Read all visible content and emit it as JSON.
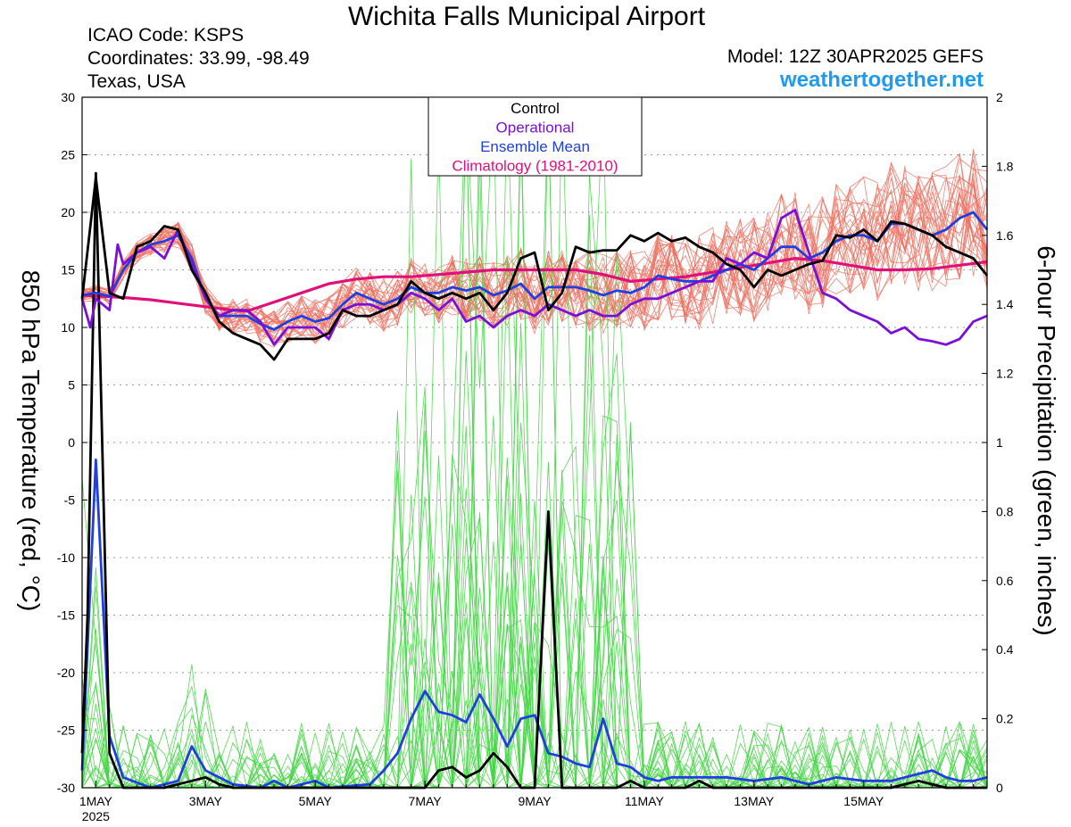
{
  "header": {
    "title": "Wichita Falls Municipal Airport",
    "icao": "ICAO Code: KSPS",
    "coordinates": "Coordinates: 33.99, -98.49",
    "region": "Texas, USA",
    "model": "Model: 12Z 30APR2025 GEFS",
    "website": "weathertogether.net"
  },
  "chart_data": {
    "type": "line",
    "ylabel_left": "850 hPa Temperature (red, °C)",
    "ylabel_right": "6-hour Precipitation (green, inches)",
    "yleft_range": [
      -30,
      30
    ],
    "yleft_ticks": [
      "30",
      "25",
      "20",
      "15",
      "10",
      "5",
      "0",
      "-5",
      "-10",
      "-15",
      "-20",
      "-25",
      "-30"
    ],
    "yright_range": [
      0,
      2
    ],
    "yright_ticks": [
      "2",
      "1.8",
      "1.6",
      "1.4",
      "1.2",
      "1",
      "0.8",
      "0.6",
      "0.4",
      "0.2",
      "0"
    ],
    "x_unit": "day of May 2025",
    "x_range": [
      0.75,
      17.25
    ],
    "x_ticks": [
      {
        "day": 1,
        "label": "1MAY",
        "sub": "2025"
      },
      {
        "day": 3,
        "label": "3MAY"
      },
      {
        "day": 5,
        "label": "5MAY"
      },
      {
        "day": 7,
        "label": "7MAY"
      },
      {
        "day": 9,
        "label": "9MAY"
      },
      {
        "day": 11,
        "label": "11MAY"
      },
      {
        "day": 13,
        "label": "13MAY"
      },
      {
        "day": 15,
        "label": "15MAY"
      }
    ],
    "grid": true,
    "legend_position": "top-center",
    "legend": [
      {
        "label": "Control",
        "color": "#000000"
      },
      {
        "label": "Operational",
        "color": "#7a10d6"
      },
      {
        "label": "Ensemble Mean",
        "color": "#1f3fe0"
      },
      {
        "label": "Climatology (1981-2010)",
        "color": "#e0107a"
      }
    ],
    "colors": {
      "member_temp": "#f07060",
      "member_precip": "#44d644",
      "control": "#000000",
      "operational": "#7a10d6",
      "mean": "#1f3fe0",
      "climatology": "#e0107a"
    },
    "temperature": {
      "control": [
        [
          0.75,
          12.5
        ],
        [
          1,
          23
        ],
        [
          1.25,
          13
        ],
        [
          1.5,
          12.5
        ],
        [
          1.75,
          17
        ],
        [
          2,
          17.5
        ],
        [
          2.25,
          18.8
        ],
        [
          2.5,
          18.5
        ],
        [
          2.75,
          15
        ],
        [
          3,
          13
        ],
        [
          3.25,
          10.5
        ],
        [
          3.5,
          9.5
        ],
        [
          3.75,
          9
        ],
        [
          4,
          8.5
        ],
        [
          4.25,
          7.2
        ],
        [
          4.5,
          9
        ],
        [
          4.75,
          9
        ],
        [
          5,
          9
        ],
        [
          5.25,
          9.5
        ],
        [
          5.5,
          11.5
        ],
        [
          5.75,
          11
        ],
        [
          6,
          11
        ],
        [
          6.25,
          11.5
        ],
        [
          6.5,
          12
        ],
        [
          6.75,
          14
        ],
        [
          7,
          13
        ],
        [
          7.25,
          12.5
        ],
        [
          7.5,
          13
        ],
        [
          7.75,
          12.5
        ],
        [
          8,
          13
        ],
        [
          8.25,
          11.5
        ],
        [
          8.5,
          13
        ],
        [
          8.75,
          16
        ],
        [
          9,
          16.5
        ],
        [
          9.25,
          11.5
        ],
        [
          9.5,
          13
        ],
        [
          9.75,
          17
        ],
        [
          10,
          16.5
        ],
        [
          10.25,
          16.7
        ],
        [
          10.5,
          16.7
        ],
        [
          10.75,
          18
        ],
        [
          11,
          17.5
        ],
        [
          11.25,
          18.2
        ],
        [
          11.5,
          17.5
        ],
        [
          11.75,
          17.8
        ],
        [
          12,
          17
        ],
        [
          12.25,
          16.5
        ],
        [
          12.5,
          15.5
        ],
        [
          12.75,
          15
        ],
        [
          13,
          13.5
        ],
        [
          13.25,
          15
        ],
        [
          13.5,
          14.5
        ],
        [
          13.75,
          15
        ],
        [
          14,
          15.5
        ],
        [
          14.25,
          15.8
        ],
        [
          14.5,
          18
        ],
        [
          14.75,
          17.8
        ],
        [
          15,
          18.5
        ],
        [
          15.25,
          17.5
        ],
        [
          15.5,
          19.2
        ],
        [
          15.75,
          19
        ],
        [
          16,
          18.5
        ],
        [
          16.25,
          18
        ],
        [
          16.5,
          17
        ],
        [
          16.75,
          16.5
        ],
        [
          17,
          16
        ],
        [
          17.25,
          14.5
        ]
      ],
      "operational": [
        [
          0.75,
          12.5
        ],
        [
          0.9,
          10
        ],
        [
          1,
          12.5
        ],
        [
          1.25,
          11.5
        ],
        [
          1.4,
          17.2
        ],
        [
          1.5,
          15.5
        ],
        [
          1.75,
          16.5
        ],
        [
          2,
          17
        ],
        [
          2.25,
          16
        ],
        [
          2.5,
          18.5
        ],
        [
          2.75,
          15.5
        ],
        [
          3,
          12.5
        ],
        [
          3.25,
          11
        ],
        [
          3.5,
          11.5
        ],
        [
          3.75,
          11.5
        ],
        [
          4,
          10.5
        ],
        [
          4.25,
          8.5
        ],
        [
          4.5,
          10
        ],
        [
          4.75,
          10
        ],
        [
          5,
          10
        ],
        [
          5.25,
          9
        ],
        [
          5.5,
          11.5
        ],
        [
          5.75,
          12
        ],
        [
          6,
          12
        ],
        [
          6.25,
          11.5
        ],
        [
          6.5,
          12
        ],
        [
          6.75,
          13
        ],
        [
          7,
          12.5
        ],
        [
          7.25,
          11.5
        ],
        [
          7.5,
          12.5
        ],
        [
          7.75,
          10.5
        ],
        [
          8,
          11
        ],
        [
          8.25,
          10
        ],
        [
          8.5,
          11
        ],
        [
          8.75,
          11.5
        ],
        [
          9,
          11
        ],
        [
          9.25,
          12
        ],
        [
          9.5,
          11.5
        ],
        [
          9.75,
          11
        ],
        [
          10,
          11.5
        ],
        [
          10.25,
          11
        ],
        [
          10.5,
          11
        ],
        [
          10.75,
          12
        ],
        [
          11,
          12.5
        ],
        [
          11.25,
          12.5
        ],
        [
          11.5,
          13
        ],
        [
          11.75,
          13.5
        ],
        [
          12,
          14
        ],
        [
          12.25,
          14
        ],
        [
          12.5,
          16
        ],
        [
          12.75,
          15.5
        ],
        [
          13,
          16.5
        ],
        [
          13.25,
          16
        ],
        [
          13.5,
          19.5
        ],
        [
          13.75,
          20.2
        ],
        [
          14,
          16.5
        ],
        [
          14.25,
          13
        ],
        [
          14.5,
          12.5
        ],
        [
          14.75,
          11.5
        ],
        [
          15,
          11
        ],
        [
          15.25,
          10.5
        ],
        [
          15.5,
          9.5
        ],
        [
          15.75,
          10
        ],
        [
          16,
          9
        ],
        [
          16.25,
          8.8
        ],
        [
          16.5,
          8.5
        ],
        [
          16.75,
          9
        ],
        [
          17,
          10.5
        ],
        [
          17.25,
          11
        ]
      ],
      "mean": [
        [
          0.75,
          12.8
        ],
        [
          1,
          13
        ],
        [
          1.25,
          12.7
        ],
        [
          1.5,
          15
        ],
        [
          1.75,
          16.5
        ],
        [
          2,
          17.2
        ],
        [
          2.25,
          17.5
        ],
        [
          2.5,
          18
        ],
        [
          2.75,
          16
        ],
        [
          3,
          12.5
        ],
        [
          3.25,
          11
        ],
        [
          3.5,
          11
        ],
        [
          3.75,
          11
        ],
        [
          4,
          10.3
        ],
        [
          4.25,
          9.8
        ],
        [
          4.5,
          10.5
        ],
        [
          4.75,
          11
        ],
        [
          5,
          10.5
        ],
        [
          5.25,
          10.8
        ],
        [
          5.5,
          12
        ],
        [
          5.75,
          13
        ],
        [
          6,
          12.5
        ],
        [
          6.25,
          12
        ],
        [
          6.5,
          12.5
        ],
        [
          6.75,
          13.5
        ],
        [
          7,
          13
        ],
        [
          7.25,
          13
        ],
        [
          7.5,
          13.5
        ],
        [
          7.75,
          13.2
        ],
        [
          8,
          13.5
        ],
        [
          8.25,
          12.8
        ],
        [
          8.5,
          13.2
        ],
        [
          8.75,
          13.8
        ],
        [
          9,
          12.5
        ],
        [
          9.25,
          13.5
        ],
        [
          9.5,
          13.5
        ],
        [
          9.75,
          13.5
        ],
        [
          10,
          13.2
        ],
        [
          10.25,
          12.8
        ],
        [
          10.5,
          13.2
        ],
        [
          10.75,
          13
        ],
        [
          11,
          13.5
        ],
        [
          11.25,
          14.5
        ],
        [
          11.5,
          14.2
        ],
        [
          11.75,
          14
        ],
        [
          12,
          14
        ],
        [
          12.25,
          14.5
        ],
        [
          12.5,
          15
        ],
        [
          12.75,
          15.5
        ],
        [
          13,
          15
        ],
        [
          13.25,
          16
        ],
        [
          13.5,
          17
        ],
        [
          13.75,
          17
        ],
        [
          14,
          16
        ],
        [
          14.25,
          16.5
        ],
        [
          14.5,
          17.5
        ],
        [
          14.75,
          18
        ],
        [
          15,
          18
        ],
        [
          15.25,
          17.5
        ],
        [
          15.5,
          19
        ],
        [
          15.75,
          19
        ],
        [
          16,
          18.5
        ],
        [
          16.25,
          18
        ],
        [
          16.5,
          18.5
        ],
        [
          16.75,
          19.5
        ],
        [
          17,
          20
        ],
        [
          17.25,
          18.5
        ]
      ],
      "climatology": [
        [
          0.75,
          12.8
        ],
        [
          1.5,
          12.6
        ],
        [
          2,
          12.4
        ],
        [
          2.5,
          12.1
        ],
        [
          3,
          11.8
        ],
        [
          3.5,
          11.5
        ],
        [
          3.75,
          11.4
        ],
        [
          4.25,
          12.2
        ],
        [
          4.75,
          13
        ],
        [
          5.25,
          13.8
        ],
        [
          5.75,
          14.2
        ],
        [
          6.25,
          14.4
        ],
        [
          6.75,
          14.4
        ],
        [
          7.25,
          14.6
        ],
        [
          7.75,
          14.8
        ],
        [
          8.25,
          15
        ],
        [
          8.75,
          15
        ],
        [
          9.25,
          15
        ],
        [
          9.75,
          15
        ],
        [
          10.25,
          14.6
        ],
        [
          10.75,
          14
        ],
        [
          11.25,
          14.2
        ],
        [
          11.75,
          14.4
        ],
        [
          12.25,
          14.8
        ],
        [
          12.75,
          15.2
        ],
        [
          13.25,
          15.6
        ],
        [
          13.75,
          16
        ],
        [
          14.25,
          15.8
        ],
        [
          14.75,
          15.4
        ],
        [
          15.25,
          15
        ],
        [
          15.75,
          15
        ],
        [
          16.25,
          15.1
        ],
        [
          16.75,
          15.4
        ],
        [
          17.25,
          15.7
        ]
      ]
    },
    "precipitation": {
      "control": [
        [
          0.75,
          0.1
        ],
        [
          0.85,
          0.5
        ],
        [
          1,
          1.78
        ],
        [
          1.25,
          0.1
        ],
        [
          1.5,
          0
        ],
        [
          2,
          0
        ],
        [
          2.25,
          0
        ],
        [
          2.5,
          0.01
        ],
        [
          2.75,
          0.02
        ],
        [
          3,
          0.03
        ],
        [
          3.25,
          0.01
        ],
        [
          3.5,
          0
        ],
        [
          6.75,
          0
        ],
        [
          7,
          0
        ],
        [
          7.25,
          0.05
        ],
        [
          7.5,
          0.06
        ],
        [
          7.75,
          0.03
        ],
        [
          8,
          0.05
        ],
        [
          8.25,
          0.1
        ],
        [
          8.5,
          0.06
        ],
        [
          8.75,
          0
        ],
        [
          9,
          0
        ],
        [
          9.25,
          0.8
        ],
        [
          9.5,
          0
        ],
        [
          10.5,
          0
        ],
        [
          10.75,
          0.02
        ],
        [
          11,
          0
        ],
        [
          11.5,
          0
        ],
        [
          11.75,
          0
        ],
        [
          12,
          0.02
        ],
        [
          12.25,
          0
        ],
        [
          15.5,
          0
        ],
        [
          16,
          0.02
        ],
        [
          16.25,
          0.01
        ],
        [
          16.5,
          0
        ],
        [
          17.25,
          0
        ]
      ],
      "mean": [
        [
          0.75,
          0.05
        ],
        [
          1,
          0.95
        ],
        [
          1.25,
          0.15
        ],
        [
          1.5,
          0.03
        ],
        [
          2,
          0
        ],
        [
          2.25,
          0.01
        ],
        [
          2.5,
          0.02
        ],
        [
          2.75,
          0.12
        ],
        [
          3,
          0.05
        ],
        [
          3.25,
          0.03
        ],
        [
          3.5,
          0.01
        ],
        [
          4,
          0
        ],
        [
          4.25,
          0.02
        ],
        [
          4.5,
          0
        ],
        [
          5,
          0.02
        ],
        [
          5.25,
          0
        ],
        [
          6,
          0.01
        ],
        [
          6.25,
          0.05
        ],
        [
          6.5,
          0.1
        ],
        [
          6.75,
          0.2
        ],
        [
          7,
          0.28
        ],
        [
          7.25,
          0.22
        ],
        [
          7.5,
          0.21
        ],
        [
          7.75,
          0.19
        ],
        [
          8,
          0.27
        ],
        [
          8.25,
          0.2
        ],
        [
          8.5,
          0.12
        ],
        [
          8.75,
          0.2
        ],
        [
          9,
          0.21
        ],
        [
          9.25,
          0.1
        ],
        [
          9.5,
          0.09
        ],
        [
          9.75,
          0.07
        ],
        [
          10,
          0.06
        ],
        [
          10.25,
          0.2
        ],
        [
          10.5,
          0.07
        ],
        [
          10.75,
          0.06
        ],
        [
          11,
          0.03
        ],
        [
          11.25,
          0.02
        ],
        [
          11.5,
          0.03
        ],
        [
          11.75,
          0.03
        ],
        [
          12,
          0.03
        ],
        [
          12.5,
          0.03
        ],
        [
          13,
          0.02
        ],
        [
          13.5,
          0.03
        ],
        [
          14,
          0.01
        ],
        [
          14.5,
          0.03
        ],
        [
          15,
          0.02
        ],
        [
          15.5,
          0.02
        ],
        [
          16,
          0.04
        ],
        [
          16.25,
          0.05
        ],
        [
          16.5,
          0.03
        ],
        [
          16.75,
          0.02
        ],
        [
          17,
          0.02
        ],
        [
          17.25,
          0.03
        ]
      ]
    }
  }
}
